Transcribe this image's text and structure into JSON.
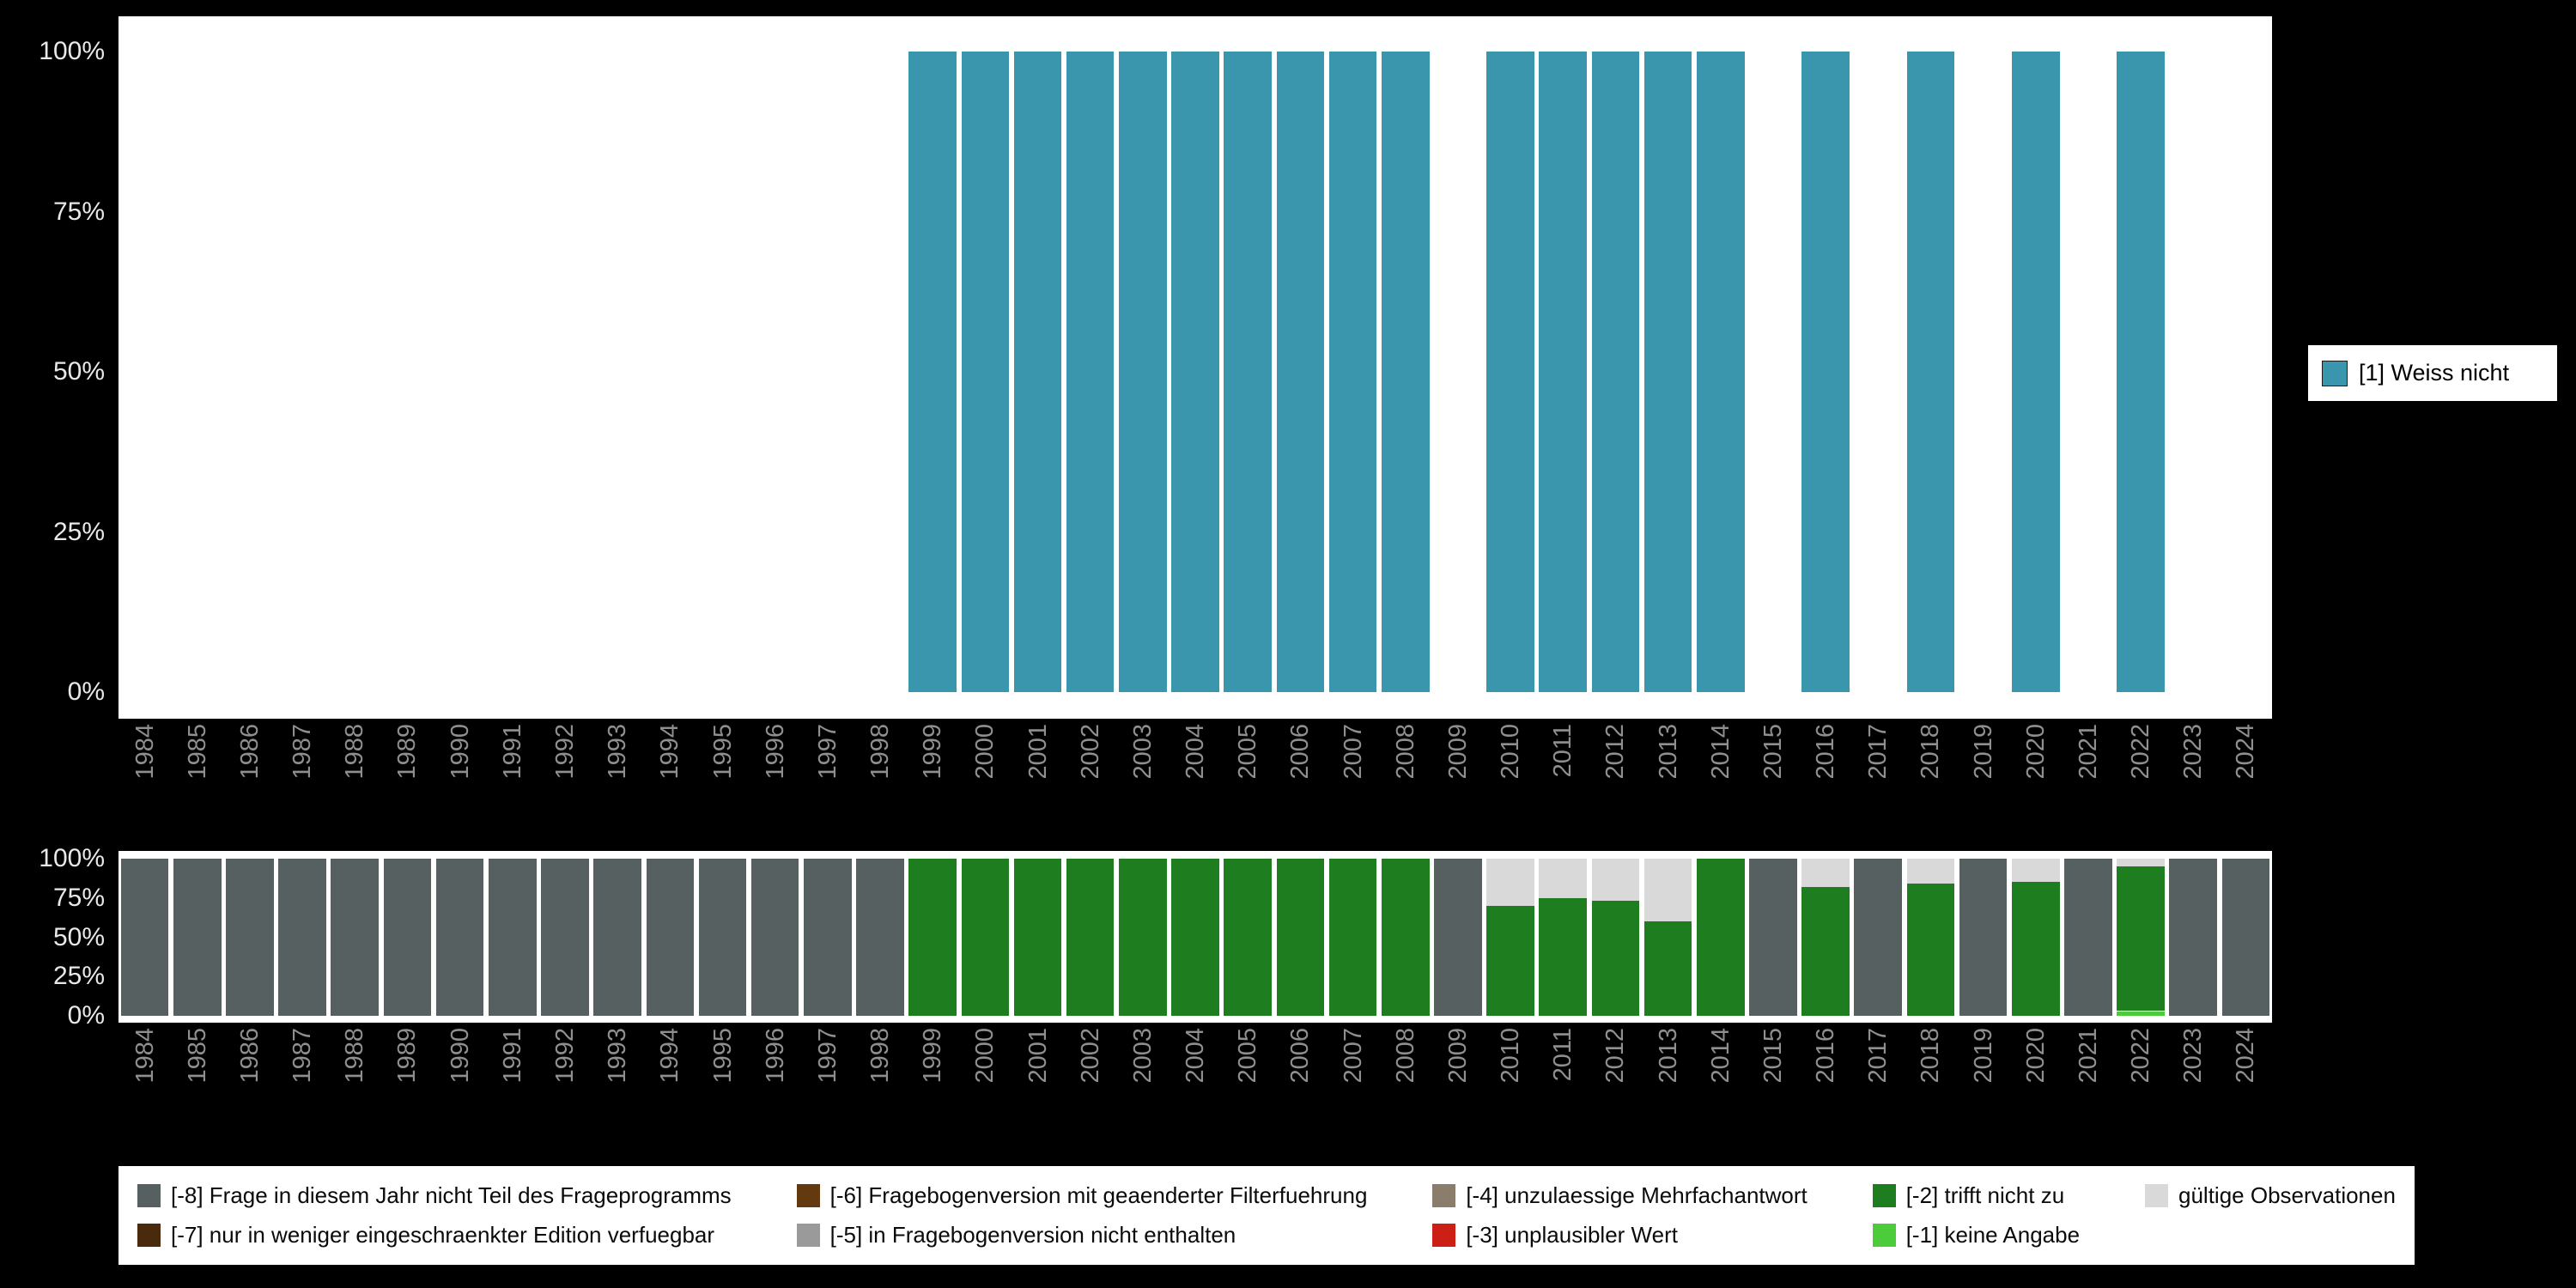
{
  "colors": {
    "background": "#000000",
    "plot_background": "#ffffff",
    "y_axis_text": "#e8e8e8",
    "x_axis_text": "#8f8f8f"
  },
  "top_legend": {
    "label": "[1] Weiss nicht",
    "color": "#3a96ad"
  },
  "chart_data": [
    {
      "name": "valid-values-chart",
      "type": "bar",
      "stacked": true,
      "title": "",
      "xlabel": "",
      "ylabel": "",
      "ylim": [
        0,
        100
      ],
      "grid": false,
      "legend_position": "right",
      "x": [
        1984,
        1985,
        1986,
        1987,
        1988,
        1989,
        1990,
        1991,
        1992,
        1993,
        1994,
        1995,
        1996,
        1997,
        1998,
        1999,
        2000,
        2001,
        2002,
        2003,
        2004,
        2005,
        2006,
        2007,
        2008,
        2009,
        2010,
        2011,
        2012,
        2013,
        2014,
        2015,
        2016,
        2017,
        2018,
        2019,
        2020,
        2021,
        2022,
        2023,
        2024
      ],
      "y_ticks": [
        {
          "label": "100%",
          "value": 100
        },
        {
          "label": "75%",
          "value": 75
        },
        {
          "label": "50%",
          "value": 50
        },
        {
          "label": "25%",
          "value": 25
        },
        {
          "label": "0%",
          "value": 0
        }
      ],
      "series": [
        {
          "name": "[1] Weiss nicht",
          "color": "#3a96ad",
          "values": [
            0,
            0,
            0,
            0,
            0,
            0,
            0,
            0,
            0,
            0,
            0,
            0,
            0,
            0,
            0,
            100,
            100,
            100,
            100,
            100,
            100,
            100,
            100,
            100,
            100,
            0,
            100,
            100,
            100,
            100,
            100,
            0,
            100,
            0,
            100,
            0,
            100,
            0,
            100,
            0,
            0
          ]
        }
      ]
    },
    {
      "name": "missing-values-chart",
      "type": "bar",
      "stacked": true,
      "title": "",
      "xlabel": "",
      "ylabel": "",
      "ylim": [
        0,
        100
      ],
      "grid": false,
      "legend_position": "bottom",
      "x": [
        1984,
        1985,
        1986,
        1987,
        1988,
        1989,
        1990,
        1991,
        1992,
        1993,
        1994,
        1995,
        1996,
        1997,
        1998,
        1999,
        2000,
        2001,
        2002,
        2003,
        2004,
        2005,
        2006,
        2007,
        2008,
        2009,
        2010,
        2011,
        2012,
        2013,
        2014,
        2015,
        2016,
        2017,
        2018,
        2019,
        2020,
        2021,
        2022,
        2023,
        2024
      ],
      "y_ticks": [
        {
          "label": "100%",
          "value": 100
        },
        {
          "label": "75%",
          "value": 75
        },
        {
          "label": "50%",
          "value": 50
        },
        {
          "label": "25%",
          "value": 25
        },
        {
          "label": "0%",
          "value": 0
        }
      ],
      "series": [
        {
          "name": "[-1] keine Angabe",
          "color": "#4ccc3a",
          "values": [
            0,
            0,
            0,
            0,
            0,
            0,
            0,
            0,
            0,
            0,
            0,
            0,
            0,
            0,
            0,
            0,
            0,
            0,
            0,
            0,
            0,
            0,
            0,
            0,
            0,
            0,
            0,
            0,
            0,
            0,
            0,
            0,
            0,
            0,
            0,
            0,
            0,
            0,
            3,
            0,
            0
          ]
        },
        {
          "name": "[-2] trifft nicht zu",
          "color": "#1e7d1e",
          "values": [
            0,
            0,
            0,
            0,
            0,
            0,
            0,
            0,
            0,
            0,
            0,
            0,
            0,
            0,
            0,
            100,
            100,
            100,
            100,
            100,
            100,
            100,
            100,
            100,
            100,
            0,
            70,
            75,
            73,
            60,
            100,
            0,
            82,
            0,
            84,
            0,
            85,
            0,
            92,
            0,
            0
          ]
        },
        {
          "name": "gültige Observationen",
          "color": "#d9d9d9",
          "values": [
            0,
            0,
            0,
            0,
            0,
            0,
            0,
            0,
            0,
            0,
            0,
            0,
            0,
            0,
            0,
            0,
            0,
            0,
            0,
            0,
            0,
            0,
            0,
            0,
            0,
            0,
            30,
            25,
            27,
            40,
            0,
            0,
            18,
            0,
            16,
            0,
            15,
            0,
            5,
            0,
            0
          ]
        },
        {
          "name": "[-8] Frage in diesem Jahr nicht Teil des Frageprogramms",
          "color": "#576060",
          "values": [
            100,
            100,
            100,
            100,
            100,
            100,
            100,
            100,
            100,
            100,
            100,
            100,
            100,
            100,
            100,
            0,
            0,
            0,
            0,
            0,
            0,
            0,
            0,
            0,
            0,
            100,
            0,
            0,
            0,
            0,
            0,
            100,
            0,
            100,
            0,
            100,
            0,
            100,
            0,
            100,
            100
          ]
        }
      ]
    }
  ],
  "bottom_legend": {
    "items": [
      {
        "label": "[-8] Frage in diesem Jahr nicht Teil des Frageprogramms",
        "color": "#576060"
      },
      {
        "label": "[-6] Fragebogenversion mit geaenderter Filterfuehrung",
        "color": "#63390f"
      },
      {
        "label": "[-4] unzulaessige Mehrfachantwort",
        "color": "#8b7d6b"
      },
      {
        "label": "[-2] trifft nicht zu",
        "color": "#1e7d1e"
      },
      {
        "label": "gültige Observationen",
        "color": "#d9d9d9"
      },
      {
        "label": "[-7] nur in weniger eingeschraenkter Edition verfuegbar",
        "color": "#4a2a0d"
      },
      {
        "label": "[-5] in Fragebogenversion nicht enthalten",
        "color": "#9a9a9a"
      },
      {
        "label": "[-3] unplausibler Wert",
        "color": "#cc2016"
      },
      {
        "label": "[-1] keine Angabe",
        "color": "#4ccc3a"
      },
      {
        "label": "",
        "color": ""
      }
    ]
  }
}
